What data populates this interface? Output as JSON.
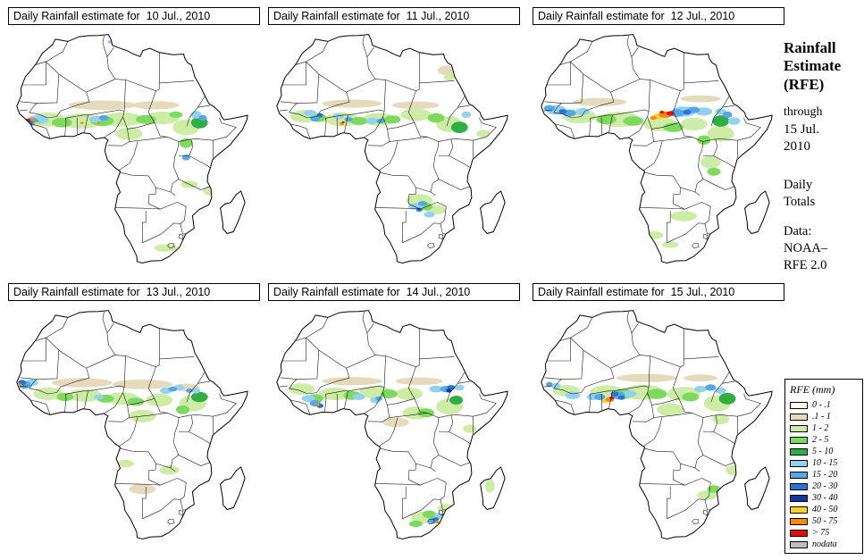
{
  "panels": [
    {
      "title": "Daily Rainfall estimate for  10 Jul., 2010"
    },
    {
      "title": "Daily Rainfall estimate for  11 Jul., 2010"
    },
    {
      "title": "Daily Rainfall estimate for  12 Jul., 2010"
    },
    {
      "title": "Daily Rainfall estimate for  13 Jul., 2010"
    },
    {
      "title": "Daily Rainfall estimate for  14 Jul., 2010"
    },
    {
      "title": "Daily Rainfall estimate for  15 Jul., 2010"
    }
  ],
  "sidebar": {
    "title_lines": [
      "Rainfall",
      "Estimate",
      "(RFE)"
    ],
    "through_label": "through",
    "date_lines": [
      "15 Jul.",
      "2010"
    ],
    "totals_lines": [
      "Daily",
      "Totals"
    ],
    "data_label": "Data:",
    "source_lines": [
      "NOAA–",
      "RFE 2.0"
    ]
  },
  "legend": {
    "title": "RFE (mm)",
    "entries": [
      {
        "label": "0 - .1",
        "color": "#fffff4"
      },
      {
        "label": ".1 - 1",
        "color": "#e6dabc"
      },
      {
        "label": "1 - 2",
        "color": "#cdeca6"
      },
      {
        "label": "2 - 5",
        "color": "#7fd95e"
      },
      {
        "label": "5 - 10",
        "color": "#2fae44"
      },
      {
        "label": "10 - 15",
        "color": "#93d1f0"
      },
      {
        "label": "15 - 20",
        "color": "#55a8e8"
      },
      {
        "label": "20 - 30",
        "color": "#2a72d8"
      },
      {
        "label": "30 - 40",
        "color": "#1238a8"
      },
      {
        "label": "40 - 50",
        "color": "#ffd22e"
      },
      {
        "label": "50 - 75",
        "color": "#ff8a00"
      },
      {
        "label": "> 75",
        "color": "#e01000"
      },
      {
        "label": "nodata",
        "color": "#bfbfbf"
      }
    ]
  }
}
